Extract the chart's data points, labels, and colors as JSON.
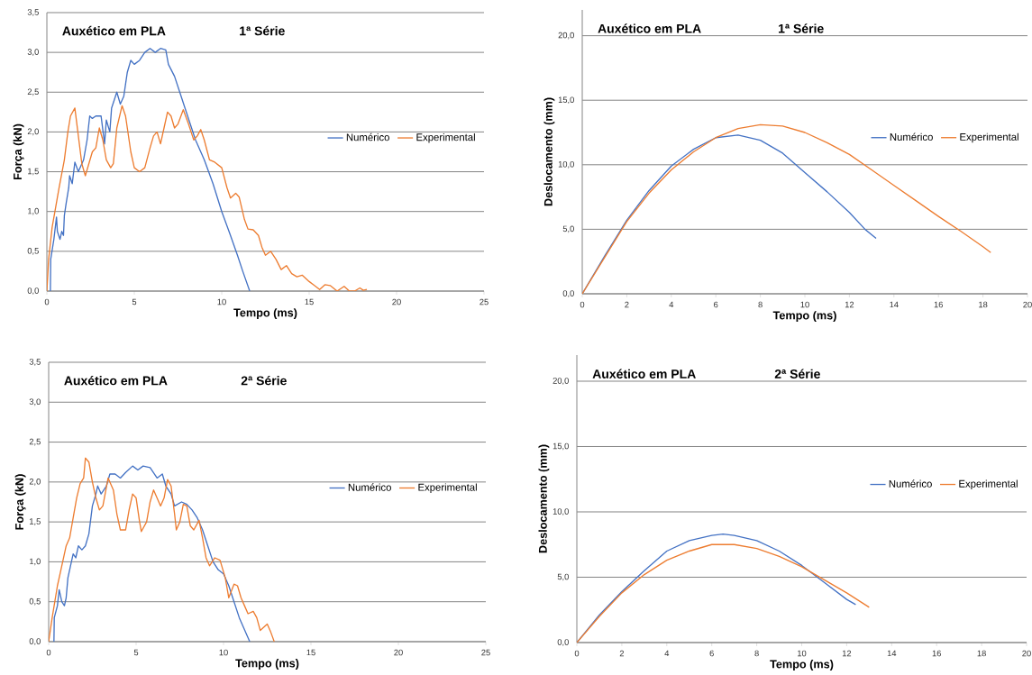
{
  "chart_data": [
    {
      "type": "line",
      "title": "Auxético em PLA",
      "subtitle": "1ª Série",
      "xlabel": "Tempo (ms)",
      "ylabel": "Força (kN)",
      "xlim": [
        0,
        25
      ],
      "ylim": [
        0,
        3.5
      ],
      "xticks": [
        0,
        5,
        10,
        15,
        20,
        25
      ],
      "yticks": [
        {
          "value": 0,
          "label": "0,0"
        },
        {
          "value": 0.5,
          "label": "0,5"
        },
        {
          "value": 1,
          "label": "1,0"
        },
        {
          "value": 1.5,
          "label": "1,5"
        },
        {
          "value": 2,
          "label": "2,0"
        },
        {
          "value": 2.5,
          "label": "2,5"
        },
        {
          "value": 3,
          "label": "3,0"
        },
        {
          "value": 3.5,
          "label": "3,5"
        }
      ],
      "grid": "y",
      "legend": "right",
      "marker": "none",
      "series": [
        {
          "name": "Numérico",
          "color": "#4472c4",
          "x": [
            0.2,
            0.22,
            0.4,
            0.55,
            0.6,
            0.75,
            0.85,
            0.95,
            1.0,
            1.1,
            1.25,
            1.3,
            1.45,
            1.6,
            1.8,
            2.1,
            2.3,
            2.45,
            2.6,
            2.8,
            3.1,
            3.3,
            3.4,
            3.6,
            3.7,
            4.0,
            4.2,
            4.4,
            4.6,
            4.8,
            5.0,
            5.3,
            5.6,
            5.9,
            6.2,
            6.5,
            6.8,
            6.95,
            7.3,
            7.6,
            7.9,
            8.5,
            9.0,
            9.5,
            10.0,
            10.5,
            10.9,
            11.2,
            11.6
          ],
          "values": [
            0,
            0.4,
            0.65,
            0.93,
            0.75,
            0.65,
            0.75,
            0.7,
            0.95,
            1.1,
            1.3,
            1.45,
            1.35,
            1.62,
            1.5,
            1.65,
            1.9,
            2.2,
            2.17,
            2.2,
            2.2,
            1.85,
            2.15,
            2.0,
            2.3,
            2.5,
            2.35,
            2.45,
            2.75,
            2.9,
            2.85,
            2.9,
            3.0,
            3.05,
            3.0,
            3.05,
            3.03,
            2.85,
            2.7,
            2.5,
            2.3,
            1.9,
            1.65,
            1.35,
            1.0,
            0.7,
            0.45,
            0.25,
            0
          ]
        },
        {
          "name": "Experimental",
          "color": "#ed7d31",
          "x": [
            0,
            0.1,
            0.3,
            0.5,
            0.7,
            1.0,
            1.2,
            1.35,
            1.6,
            1.8,
            2.0,
            2.2,
            2.4,
            2.6,
            2.8,
            3.0,
            3.2,
            3.4,
            3.65,
            3.8,
            4.0,
            4.3,
            4.5,
            4.8,
            5.0,
            5.3,
            5.6,
            5.9,
            6.1,
            6.3,
            6.5,
            6.7,
            6.9,
            7.1,
            7.3,
            7.5,
            7.8,
            8.1,
            8.4,
            8.6,
            8.8,
            9.0,
            9.3,
            9.6,
            10.0,
            10.3,
            10.5,
            10.8,
            11.0,
            11.3,
            11.5,
            11.8,
            12.1,
            12.3,
            12.5,
            12.8,
            13.1,
            13.4,
            13.7,
            14.0,
            14.3,
            14.6,
            15.0,
            15.3,
            15.6,
            15.9,
            16.2,
            16.6,
            17.0,
            17.3,
            17.6,
            17.9,
            18.1,
            18.3
          ],
          "values": [
            0,
            0.4,
            0.8,
            1.05,
            1.3,
            1.65,
            2.0,
            2.2,
            2.3,
            1.95,
            1.6,
            1.45,
            1.6,
            1.75,
            1.8,
            2.05,
            1.9,
            1.65,
            1.55,
            1.6,
            2.05,
            2.33,
            2.2,
            1.75,
            1.55,
            1.5,
            1.55,
            1.8,
            1.95,
            2.0,
            1.85,
            2.05,
            2.25,
            2.2,
            2.05,
            2.1,
            2.28,
            2.1,
            1.9,
            1.95,
            2.03,
            1.9,
            1.65,
            1.62,
            1.55,
            1.3,
            1.17,
            1.23,
            1.18,
            0.9,
            0.78,
            0.77,
            0.7,
            0.55,
            0.45,
            0.5,
            0.4,
            0.27,
            0.32,
            0.22,
            0.18,
            0.2,
            0.12,
            0.07,
            0.02,
            0.08,
            0.07,
            0.0,
            0.06,
            0.0,
            0.0,
            0.04,
            0.01,
            0.02
          ]
        }
      ]
    },
    {
      "type": "line",
      "title": "Auxético em PLA",
      "subtitle": "1ª Série",
      "xlabel": "Tempo (ms)",
      "ylabel": "Deslocamento (mm)",
      "xlim": [
        0,
        20
      ],
      "ylim": [
        0,
        22
      ],
      "xticks": [
        0,
        2,
        4,
        6,
        8,
        10,
        12,
        14,
        16,
        18,
        20
      ],
      "yticks": [
        {
          "value": 0,
          "label": "0,0"
        },
        {
          "value": 5,
          "label": "5,0"
        },
        {
          "value": 10,
          "label": "10,0"
        },
        {
          "value": 15,
          "label": "15,0"
        },
        {
          "value": 20,
          "label": "20,0"
        }
      ],
      "grid": "y",
      "legend": "right",
      "marker": "none",
      "series": [
        {
          "name": "Numérico",
          "color": "#4472c4",
          "x": [
            0,
            1,
            2,
            3,
            4,
            5,
            6,
            7,
            8,
            9,
            10,
            11,
            12,
            12.7,
            13.2
          ],
          "values": [
            0,
            2.9,
            5.7,
            8.0,
            9.9,
            11.2,
            12.1,
            12.3,
            11.9,
            10.9,
            9.4,
            7.9,
            6.3,
            5.0,
            4.3
          ]
        },
        {
          "name": "Experimental",
          "color": "#ed7d31",
          "x": [
            0,
            1,
            2,
            3,
            4,
            5,
            6,
            7,
            8,
            9,
            10,
            11,
            12,
            13,
            14,
            15,
            16,
            17,
            18,
            18.35
          ],
          "values": [
            0,
            2.8,
            5.6,
            7.8,
            9.6,
            11.0,
            12.1,
            12.8,
            13.1,
            13.0,
            12.5,
            11.7,
            10.8,
            9.6,
            8.4,
            7.2,
            6.0,
            4.85,
            3.65,
            3.2
          ]
        }
      ]
    },
    {
      "type": "line",
      "title": "Auxético em PLA",
      "subtitle": "2ª Série",
      "xlabel": "Tempo (ms)",
      "ylabel": "Força (kN)",
      "xlim": [
        0,
        25
      ],
      "ylim": [
        0,
        3.5
      ],
      "xticks": [
        0,
        5,
        10,
        15,
        20,
        25
      ],
      "yticks": [
        {
          "value": 0,
          "label": "0,0"
        },
        {
          "value": 0.5,
          "label": "0,5"
        },
        {
          "value": 1,
          "label": "1,0"
        },
        {
          "value": 1.5,
          "label": "1,5"
        },
        {
          "value": 2,
          "label": "2,0"
        },
        {
          "value": 2.5,
          "label": "2,5"
        },
        {
          "value": 3,
          "label": "3,0"
        },
        {
          "value": 3.5,
          "label": "3,5"
        }
      ],
      "grid": "y",
      "legend": "right",
      "marker": "none",
      "series": [
        {
          "name": "Numérico",
          "color": "#4472c4",
          "x": [
            0.3,
            0.32,
            0.5,
            0.6,
            0.75,
            0.9,
            1.0,
            1.1,
            1.3,
            1.4,
            1.55,
            1.7,
            1.9,
            2.1,
            2.3,
            2.5,
            2.7,
            2.8,
            3.0,
            3.3,
            3.5,
            3.8,
            4.1,
            4.4,
            4.8,
            5.1,
            5.4,
            5.8,
            6.2,
            6.5,
            6.7,
            7.0,
            7.2,
            7.6,
            7.9,
            8.2,
            8.5,
            8.8,
            9.1,
            9.4,
            9.7,
            10.0,
            10.3,
            10.6,
            10.9,
            11.2,
            11.5
          ],
          "values": [
            0,
            0.3,
            0.45,
            0.65,
            0.5,
            0.45,
            0.55,
            0.8,
            1.0,
            1.1,
            1.05,
            1.2,
            1.15,
            1.2,
            1.35,
            1.7,
            1.85,
            1.95,
            1.85,
            1.95,
            2.1,
            2.1,
            2.05,
            2.12,
            2.2,
            2.15,
            2.2,
            2.18,
            2.05,
            2.1,
            1.95,
            1.85,
            1.7,
            1.75,
            1.72,
            1.65,
            1.55,
            1.4,
            1.2,
            1.0,
            0.9,
            0.85,
            0.7,
            0.5,
            0.3,
            0.15,
            0
          ]
        },
        {
          "name": "Experimental",
          "color": "#ed7d31",
          "x": [
            0,
            0.2,
            0.5,
            0.7,
            1.0,
            1.2,
            1.4,
            1.6,
            1.8,
            2.0,
            2.1,
            2.3,
            2.5,
            2.7,
            2.9,
            3.1,
            3.4,
            3.7,
            3.9,
            4.1,
            4.4,
            4.6,
            4.8,
            5.0,
            5.2,
            5.3,
            5.6,
            5.8,
            6.0,
            6.2,
            6.4,
            6.6,
            6.8,
            7.0,
            7.2,
            7.3,
            7.5,
            7.7,
            7.9,
            8.1,
            8.3,
            8.6,
            8.8,
            9.0,
            9.2,
            9.5,
            9.8,
            10.1,
            10.3,
            10.6,
            10.8,
            11.0,
            11.2,
            11.4,
            11.7,
            11.9,
            12.1,
            12.3,
            12.5,
            12.7,
            12.9
          ],
          "values": [
            0,
            0.3,
            0.7,
            0.9,
            1.2,
            1.3,
            1.55,
            1.8,
            1.98,
            2.05,
            2.3,
            2.25,
            2.0,
            1.8,
            1.65,
            1.7,
            2.05,
            1.9,
            1.6,
            1.4,
            1.4,
            1.65,
            1.85,
            1.8,
            1.5,
            1.38,
            1.5,
            1.75,
            1.9,
            1.8,
            1.7,
            1.8,
            2.03,
            1.95,
            1.6,
            1.4,
            1.5,
            1.72,
            1.7,
            1.45,
            1.4,
            1.52,
            1.3,
            1.05,
            0.95,
            1.05,
            1.02,
            0.8,
            0.55,
            0.72,
            0.7,
            0.55,
            0.45,
            0.35,
            0.38,
            0.3,
            0.14,
            0.18,
            0.22,
            0.12,
            0
          ]
        }
      ]
    },
    {
      "type": "line",
      "title": "Auxético em PLA",
      "subtitle": "2ª Série",
      "xlabel": "Tempo (ms)",
      "ylabel": "Deslocamento (mm)",
      "xlim": [
        0,
        20
      ],
      "ylim": [
        0,
        22
      ],
      "xticks": [
        0,
        2,
        4,
        6,
        8,
        10,
        12,
        14,
        16,
        18,
        20
      ],
      "yticks": [
        {
          "value": 0,
          "label": "0,0"
        },
        {
          "value": 5,
          "label": "5,0"
        },
        {
          "value": 10,
          "label": "10,0"
        },
        {
          "value": 15,
          "label": "15,0"
        },
        {
          "value": 20,
          "label": "20,0"
        }
      ],
      "grid": "y",
      "legend": "right",
      "marker": "none",
      "series": [
        {
          "name": "Numérico",
          "color": "#4472c4",
          "x": [
            0,
            1,
            2,
            3,
            4,
            5,
            6,
            6.5,
            7,
            8,
            9,
            10,
            11,
            12,
            12.4
          ],
          "values": [
            0,
            2.1,
            3.9,
            5.5,
            7.0,
            7.8,
            8.2,
            8.3,
            8.2,
            7.8,
            7.0,
            5.9,
            4.6,
            3.3,
            2.9
          ]
        },
        {
          "name": "Experimental",
          "color": "#ed7d31",
          "x": [
            0,
            1,
            2,
            3,
            4,
            5,
            6,
            7,
            8,
            9,
            10,
            11,
            12,
            13
          ],
          "values": [
            0,
            2.0,
            3.8,
            5.2,
            6.3,
            7.0,
            7.5,
            7.5,
            7.2,
            6.6,
            5.8,
            4.8,
            3.8,
            2.7
          ]
        }
      ]
    }
  ]
}
